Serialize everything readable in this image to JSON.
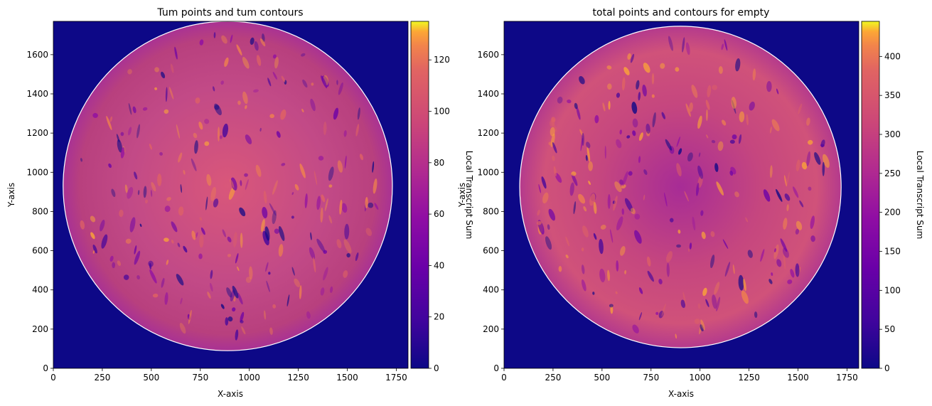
{
  "chart_data": [
    {
      "type": "heatmap",
      "title": "Tum points and tum contours",
      "xlabel": "X-axis",
      "ylabel": "Y-axis",
      "xlim": [
        0,
        1810
      ],
      "ylim": [
        0,
        1770
      ],
      "x_ticks": [
        0,
        250,
        500,
        750,
        1000,
        1250,
        1500,
        1750
      ],
      "y_ticks": [
        0,
        200,
        400,
        600,
        800,
        1000,
        1200,
        1400,
        1600
      ],
      "colorbar": {
        "label": "Local Transcript Sum",
        "min": 0,
        "max": 135,
        "ticks": [
          0,
          20,
          40,
          60,
          80,
          100,
          120
        ]
      },
      "colormap": "plasma",
      "contour_color": "#ffffff",
      "tissue_region": {
        "center": [
          890,
          930
        ],
        "radius": 840
      }
    },
    {
      "type": "heatmap",
      "title": "total points and contours for empty",
      "xlabel": "X-axis",
      "ylabel": "Y-axis",
      "xlim": [
        0,
        1810
      ],
      "ylim": [
        0,
        1770
      ],
      "x_ticks": [
        0,
        250,
        500,
        750,
        1000,
        1250,
        1500,
        1750
      ],
      "y_ticks": [
        0,
        200,
        400,
        600,
        800,
        1000,
        1200,
        1400,
        1600
      ],
      "colorbar": {
        "label": "Local Transcript Sum",
        "min": 0,
        "max": 445,
        "ticks": [
          0,
          50,
          100,
          150,
          200,
          250,
          300,
          350,
          400
        ]
      },
      "colormap": "plasma",
      "contour_color": "#ffffff",
      "tissue_region": {
        "center": [
          900,
          925
        ],
        "radius": 820
      }
    }
  ]
}
